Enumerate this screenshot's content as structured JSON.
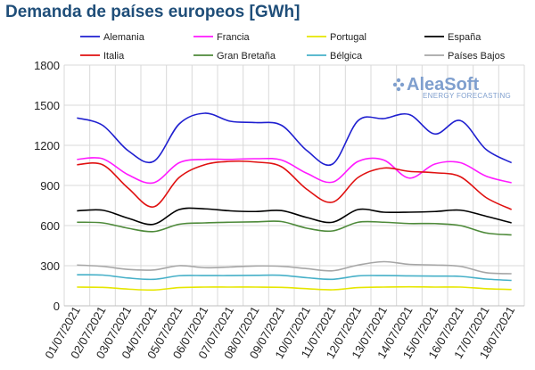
{
  "title": "Demanda de países europeos [GWh]",
  "logo": {
    "brand": "AleaSoft",
    "tagline": "ENERGY FORECASTING",
    "color": "#7f9fce"
  },
  "chart_data": {
    "type": "line",
    "title": "Demanda de países europeos [GWh]",
    "xlabel": "",
    "ylabel": "",
    "ylim": [
      0,
      1800
    ],
    "yticks": [
      0,
      300,
      600,
      900,
      1200,
      1500,
      1800
    ],
    "grid": true,
    "legend_position": "top",
    "categories": [
      "01/07/2021",
      "02/07/2021",
      "03/07/2021",
      "04/07/2021",
      "05/07/2021",
      "06/07/2021",
      "07/07/2021",
      "08/07/2021",
      "09/07/2021",
      "10/07/2021",
      "11/07/2021",
      "12/07/2021",
      "13/07/2021",
      "14/07/2021",
      "15/07/2021",
      "16/07/2021",
      "17/07/2021",
      "18/07/2021"
    ],
    "series": [
      {
        "name": "Alemania",
        "color": "#1f1fd0",
        "values": [
          1405,
          1350,
          1160,
          1080,
          1360,
          1440,
          1380,
          1370,
          1350,
          1160,
          1060,
          1385,
          1400,
          1430,
          1285,
          1385,
          1170,
          1070
        ]
      },
      {
        "name": "Francia",
        "color": "#ff1aff",
        "values": [
          1095,
          1100,
          980,
          920,
          1070,
          1095,
          1095,
          1100,
          1090,
          990,
          925,
          1080,
          1090,
          955,
          1060,
          1070,
          970,
          920
        ]
      },
      {
        "name": "Portugal",
        "color": "#e6e600",
        "values": [
          140,
          138,
          125,
          118,
          136,
          140,
          140,
          140,
          138,
          128,
          120,
          136,
          140,
          142,
          140,
          140,
          128,
          122
        ]
      },
      {
        "name": "España",
        "color": "#000000",
        "values": [
          710,
          715,
          655,
          610,
          720,
          725,
          710,
          705,
          712,
          660,
          625,
          720,
          700,
          700,
          705,
          715,
          670,
          620
        ]
      },
      {
        "name": "Italia",
        "color": "#e01010",
        "values": [
          1055,
          1055,
          880,
          740,
          960,
          1055,
          1080,
          1075,
          1040,
          870,
          775,
          960,
          1030,
          1005,
          995,
          965,
          810,
          720
        ]
      },
      {
        "name": "Gran Bretaña",
        "color": "#4e8a3a",
        "values": [
          625,
          620,
          580,
          555,
          610,
          620,
          625,
          628,
          630,
          580,
          560,
          625,
          625,
          615,
          615,
          600,
          545,
          530
        ]
      },
      {
        "name": "Bélgica",
        "color": "#46b0c8",
        "values": [
          232,
          230,
          208,
          198,
          225,
          226,
          226,
          228,
          228,
          210,
          198,
          224,
          226,
          224,
          222,
          220,
          200,
          190
        ]
      },
      {
        "name": "Países Bajos",
        "color": "#a6a6a6",
        "values": [
          305,
          295,
          272,
          268,
          300,
          285,
          290,
          298,
          295,
          278,
          262,
          305,
          330,
          310,
          305,
          295,
          248,
          240
        ]
      }
    ]
  }
}
